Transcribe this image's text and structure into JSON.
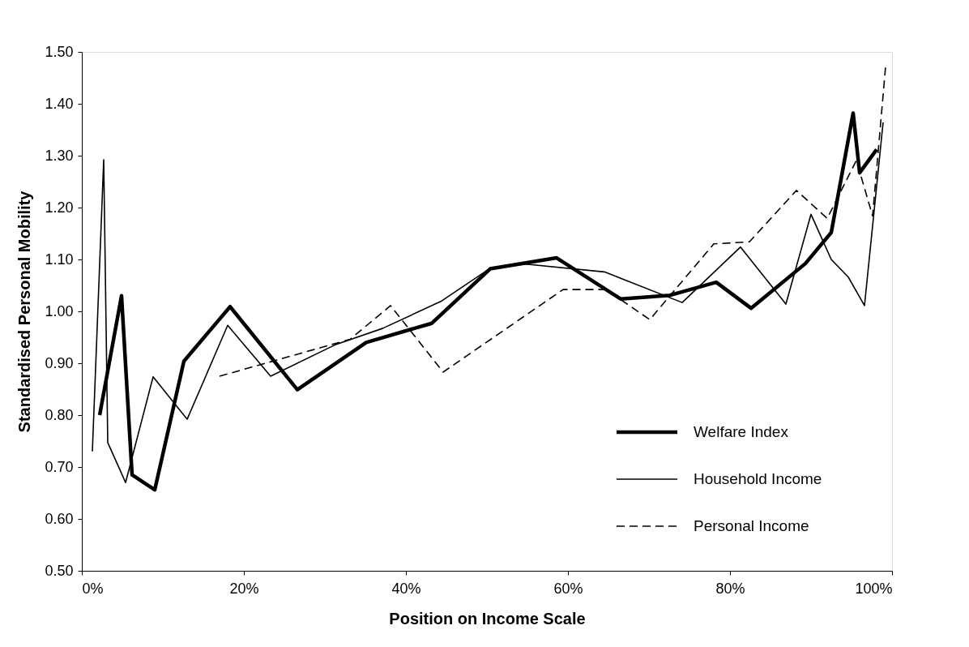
{
  "chart_data": {
    "type": "line",
    "xlabel": "Position on Income Scale",
    "ylabel": "Standardised Personal Mobility",
    "xlim": [
      0,
      100
    ],
    "xticks": [
      {
        "value": 0,
        "label": "0%"
      },
      {
        "value": 20,
        "label": "20%"
      },
      {
        "value": 40,
        "label": "40%"
      },
      {
        "value": 60,
        "label": "60%"
      },
      {
        "value": 80,
        "label": "80%"
      },
      {
        "value": 100,
        "label": "100%"
      }
    ],
    "ylim": [
      0.5,
      1.5
    ],
    "yticks": [
      {
        "value": 0.5,
        "label": "0.50"
      },
      {
        "value": 0.6,
        "label": "0.60"
      },
      {
        "value": 0.7,
        "label": "0.70"
      },
      {
        "value": 0.8,
        "label": "0.80"
      },
      {
        "value": 0.9,
        "label": "0.90"
      },
      {
        "value": 1.0,
        "label": "1.00"
      },
      {
        "value": 1.1,
        "label": "1.10"
      },
      {
        "value": 1.2,
        "label": "1.20"
      },
      {
        "value": 1.3,
        "label": "1.30"
      },
      {
        "value": 1.4,
        "label": "1.40"
      },
      {
        "value": 1.5,
        "label": "1.50"
      }
    ],
    "grid": false,
    "legend": "bottom right",
    "marker": "none",
    "series": [
      {
        "name": "Welfare Index",
        "color": "#000000",
        "line_style": "solid",
        "x": [
          2.2,
          4.9,
          6.2,
          9.0,
          12.6,
          18.3,
          26.6,
          35.1,
          43.2,
          50.4,
          58.6,
          66.5,
          72.6,
          78.3,
          82.6,
          89.3,
          92.5,
          95.2,
          96.0,
          98.1
        ],
        "values": [
          0.8,
          1.03,
          0.685,
          0.656,
          0.904,
          1.009,
          0.849,
          0.94,
          0.977,
          1.082,
          1.103,
          1.024,
          1.031,
          1.056,
          1.006,
          1.092,
          1.152,
          1.382,
          1.267,
          1.312
        ]
      },
      {
        "name": "Household Income",
        "color": "#000000",
        "line_style": "solid",
        "x": [
          1.3,
          2.7,
          3.2,
          5.4,
          8.8,
          13.0,
          18.0,
          23.3,
          31.2,
          37.1,
          44.3,
          50.4,
          54.8,
          64.5,
          74.1,
          81.3,
          86.9,
          90.0,
          92.5,
          94.6,
          96.6,
          98.9
        ],
        "values": [
          0.73,
          1.292,
          0.747,
          0.67,
          0.874,
          0.792,
          0.973,
          0.875,
          0.935,
          0.967,
          1.019,
          1.083,
          1.091,
          1.076,
          1.017,
          1.124,
          1.014,
          1.187,
          1.1,
          1.066,
          1.011,
          1.364
        ]
      },
      {
        "name": "Personal Income",
        "color": "#000000",
        "line_style": "dashed",
        "x": [
          17.0,
          33.1,
          38.1,
          44.6,
          59.4,
          64.7,
          70.1,
          78.0,
          82.4,
          88.2,
          92.0,
          95.6,
          97.6,
          99.2
        ],
        "values": [
          0.875,
          0.946,
          1.011,
          0.883,
          1.042,
          1.042,
          0.984,
          1.13,
          1.134,
          1.233,
          1.179,
          1.291,
          1.184,
          1.471
        ]
      }
    ]
  }
}
